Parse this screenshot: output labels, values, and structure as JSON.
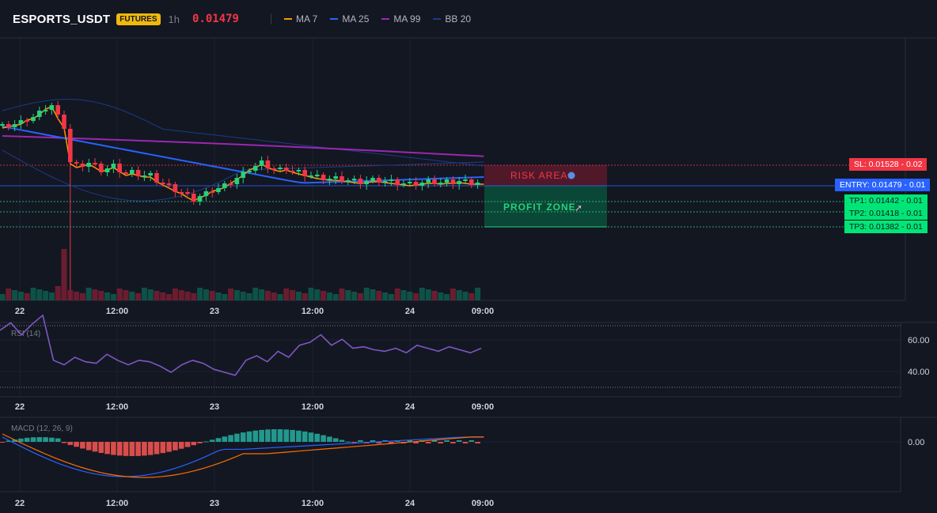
{
  "header": {
    "symbol": "ESPORTS_USDT",
    "badge": "FUTURES",
    "timeframe": "1h",
    "price": "0.01479",
    "legend": [
      {
        "label": "MA 7",
        "color": "#ff9800"
      },
      {
        "label": "MA 25",
        "color": "#2962ff"
      },
      {
        "label": "MA 99",
        "color": "#9c27b0"
      },
      {
        "label": "BB 20",
        "color": "#1e3a8a"
      }
    ]
  },
  "zones": {
    "risk_label": "RISK AREA",
    "profit_label": "PROFIT ZONE"
  },
  "levels": {
    "sl": {
      "label": "SL: 0.01528",
      "delta": "- 0.02",
      "value": 0.01528
    },
    "entry": {
      "label": "ENTRY: 0.01479",
      "delta": "- 0.01",
      "value": 0.01479
    },
    "tp1": {
      "label": "TP1: 0.01442",
      "delta": "- 0.01",
      "value": 0.01442
    },
    "tp2": {
      "label": "TP2: 0.01418",
      "delta": "- 0.01",
      "value": 0.01418
    },
    "tp3": {
      "label": "TP3: 0.01382",
      "delta": "- 0.01",
      "value": 0.01382
    }
  },
  "time_axis": [
    "22",
    "12:00",
    "23",
    "12:00",
    "24",
    "09:00"
  ],
  "rsi": {
    "title": "RSI (14)",
    "ticks": [
      "60.00",
      "40.00"
    ]
  },
  "macd": {
    "title": "MACD (12, 26, 9)",
    "ticks": [
      "0.00"
    ]
  },
  "colors": {
    "up": "#26d07c",
    "down": "#f23645",
    "bg": "#131722",
    "risk": "#f23645",
    "profit": "#089981",
    "entry": "#2962ff"
  }
}
